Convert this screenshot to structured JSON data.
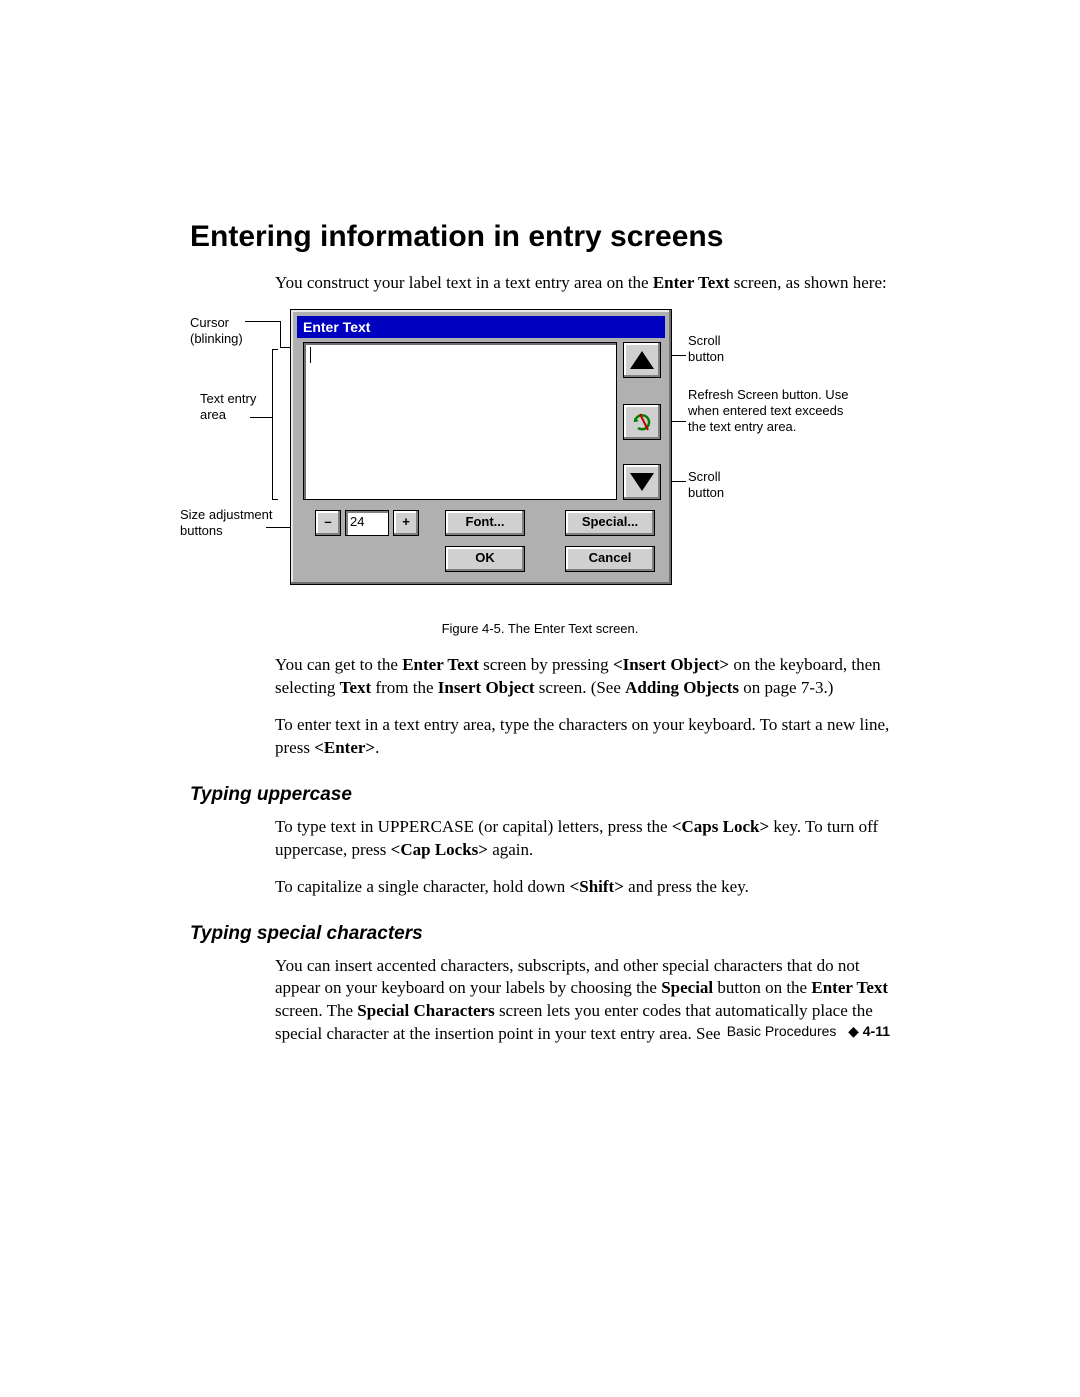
{
  "heading": "Entering information in entry screens",
  "intro_html": "You construct your label text in a text entry area on the <b>Enter Text</b> screen, as shown here:",
  "dialog": {
    "title": "Enter Text",
    "font_size_value": "24",
    "buttons": {
      "minus": "–",
      "plus": "+",
      "font": "Font...",
      "special": "Special...",
      "ok": "OK",
      "cancel": "Cancel"
    }
  },
  "callouts": {
    "cursor": "Cursor (blinking)",
    "text_area": "Text entry area",
    "size_buttons": "Size adjustment buttons",
    "scroll_top": "Scroll button",
    "refresh": "Refresh Screen button. Use when entered text exceeds the text entry area.",
    "scroll_bottom": "Scroll button"
  },
  "caption": "Figure 4-5. The Enter Text screen.",
  "p2_html": "You can get to the <b>Enter Text</b> screen by pressing <b>&lt;Insert Object&gt;</b> on the keyboard, then selecting <b>Text</b> from the <b>Insert Object</b> screen. (See <b>Adding Objects</b> on page 7-3.)",
  "p3_html": "To enter text in a text entry area, type the characters on your keyboard. To start a new line, press <b>&lt;Enter&gt;</b>.",
  "sub1": "Typing uppercase",
  "p4_html": "To type text in UPPERCASE (or capital) letters, press the <b>&lt;Caps Lock&gt;</b> key. To turn off uppercase, press <b>&lt;Cap Locks&gt;</b> again.",
  "p5_html": "To capitalize a single character, hold down <b>&lt;Shift&gt;</b> and press the key.",
  "sub2": "Typing special characters",
  "p6_html": "You can insert accented characters, subscripts, and other special characters that do not appear on your keyboard on your labels by choosing the <b>Special</b> button on the <b>Enter Text</b> screen. The <b>Special Characters</b> screen lets you enter codes that automatically place the special character at the insertion point in your text entry area. See",
  "footer_section": "Basic Procedures",
  "footer_page": "4-11"
}
